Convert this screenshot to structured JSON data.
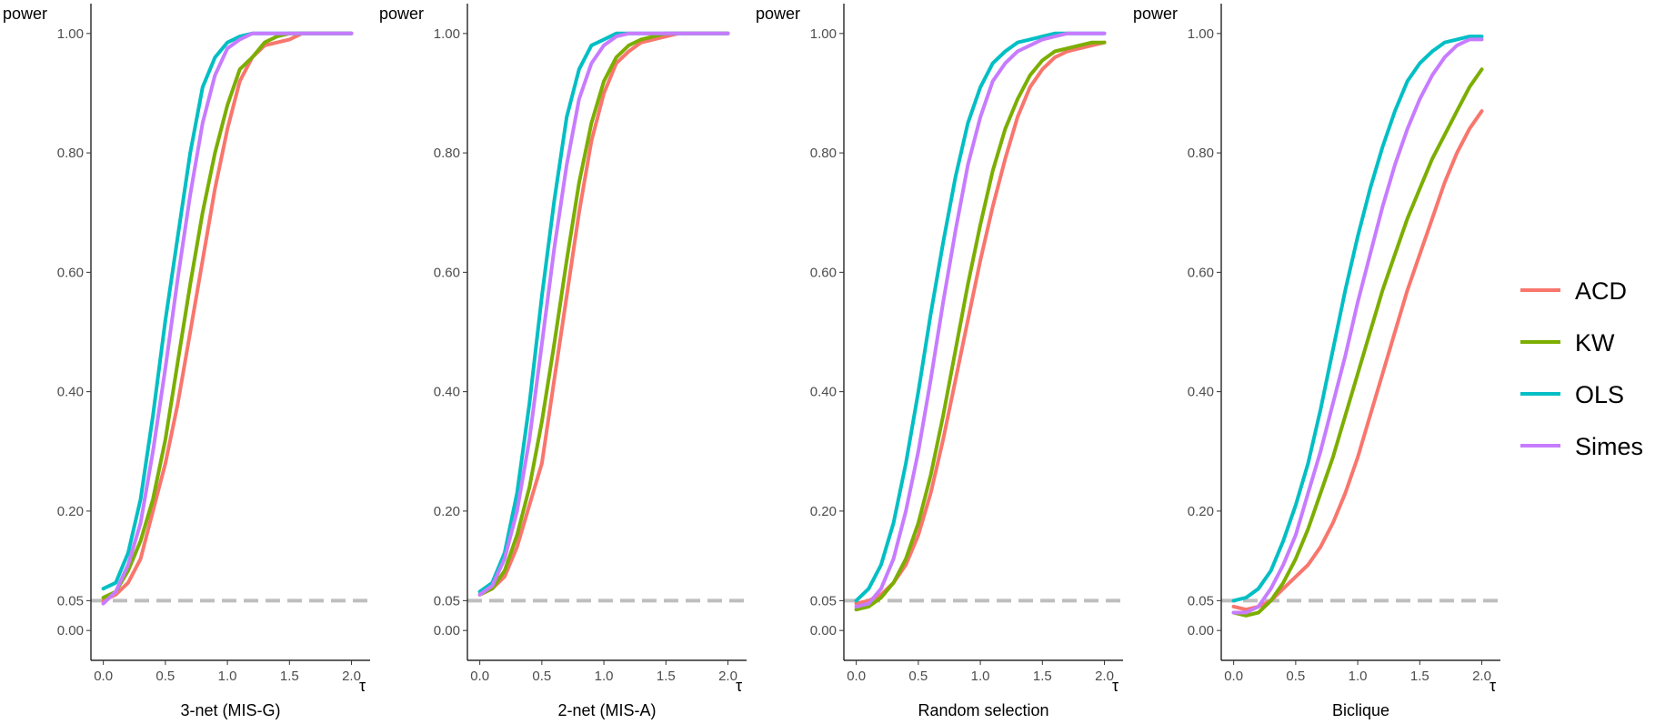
{
  "chart_data": {
    "type": "line",
    "y_label": "power",
    "x_label": "τ",
    "xlim": [
      -0.1,
      2.15
    ],
    "ylim": [
      -0.05,
      1.05
    ],
    "x_ticks": [
      0.0,
      0.5,
      1.0,
      1.5,
      2.0
    ],
    "x_tick_labels": [
      "0.0",
      "0.5",
      "1.0",
      "1.5",
      "2.0"
    ],
    "y_ticks": [
      0.0,
      0.05,
      0.2,
      0.4,
      0.6,
      0.8,
      1.0
    ],
    "y_tick_labels": [
      "0.00",
      "0.05",
      "0.20",
      "0.40",
      "0.60",
      "0.80",
      "1.00"
    ],
    "reference_line": {
      "y": 0.05,
      "style": "dashed",
      "color": "#bebebe"
    },
    "legend": {
      "position": "right",
      "entries": [
        {
          "name": "ACD",
          "color": "#F8766D"
        },
        {
          "name": "KW",
          "color": "#7CAE00"
        },
        {
          "name": "OLS",
          "color": "#00BFC4"
        },
        {
          "name": "Simes",
          "color": "#C77CFF"
        }
      ]
    },
    "x": [
      0.0,
      0.1,
      0.2,
      0.3,
      0.4,
      0.5,
      0.6,
      0.7,
      0.8,
      0.9,
      1.0,
      1.1,
      1.2,
      1.3,
      1.4,
      1.5,
      1.6,
      1.7,
      1.8,
      1.9,
      2.0
    ],
    "panels": [
      {
        "title": "3-net (MIS-G)",
        "series": [
          {
            "name": "ACD",
            "values": [
              0.05,
              0.06,
              0.08,
              0.12,
              0.2,
              0.28,
              0.38,
              0.5,
              0.62,
              0.74,
              0.84,
              0.92,
              0.96,
              0.98,
              0.985,
              0.99,
              1.0,
              1.0,
              1.0,
              1.0,
              1.0
            ]
          },
          {
            "name": "KW",
            "values": [
              0.055,
              0.065,
              0.1,
              0.15,
              0.22,
              0.32,
              0.45,
              0.58,
              0.7,
              0.8,
              0.88,
              0.94,
              0.96,
              0.985,
              0.995,
              1.0,
              1.0,
              1.0,
              1.0,
              1.0,
              1.0
            ]
          },
          {
            "name": "OLS",
            "values": [
              0.07,
              0.08,
              0.13,
              0.22,
              0.36,
              0.52,
              0.66,
              0.8,
              0.91,
              0.96,
              0.985,
              0.995,
              1.0,
              1.0,
              1.0,
              1.0,
              1.0,
              1.0,
              1.0,
              1.0,
              1.0
            ]
          },
          {
            "name": "Simes",
            "values": [
              0.045,
              0.065,
              0.11,
              0.18,
              0.3,
              0.44,
              0.59,
              0.73,
              0.85,
              0.93,
              0.975,
              0.99,
              1.0,
              1.0,
              1.0,
              1.0,
              1.0,
              1.0,
              1.0,
              1.0,
              1.0
            ]
          }
        ]
      },
      {
        "title": "2-net (MIS-A)",
        "series": [
          {
            "name": "ACD",
            "values": [
              0.06,
              0.07,
              0.09,
              0.14,
              0.21,
              0.28,
              0.42,
              0.56,
              0.7,
              0.82,
              0.9,
              0.95,
              0.97,
              0.985,
              0.99,
              0.995,
              1.0,
              1.0,
              1.0,
              1.0,
              1.0
            ]
          },
          {
            "name": "KW",
            "values": [
              0.06,
              0.07,
              0.1,
              0.16,
              0.24,
              0.35,
              0.48,
              0.62,
              0.75,
              0.85,
              0.92,
              0.96,
              0.98,
              0.99,
              0.995,
              1.0,
              1.0,
              1.0,
              1.0,
              1.0,
              1.0
            ]
          },
          {
            "name": "OLS",
            "values": [
              0.065,
              0.08,
              0.13,
              0.23,
              0.38,
              0.56,
              0.72,
              0.86,
              0.94,
              0.98,
              0.99,
              1.0,
              1.0,
              1.0,
              1.0,
              1.0,
              1.0,
              1.0,
              1.0,
              1.0,
              1.0
            ]
          },
          {
            "name": "Simes",
            "values": [
              0.06,
              0.075,
              0.12,
              0.2,
              0.32,
              0.48,
              0.64,
              0.78,
              0.89,
              0.95,
              0.98,
              0.995,
              1.0,
              1.0,
              1.0,
              1.0,
              1.0,
              1.0,
              1.0,
              1.0,
              1.0
            ]
          }
        ]
      },
      {
        "title": "Random selection",
        "series": [
          {
            "name": "ACD",
            "values": [
              0.045,
              0.05,
              0.06,
              0.08,
              0.11,
              0.16,
              0.23,
              0.32,
              0.42,
              0.52,
              0.62,
              0.71,
              0.79,
              0.86,
              0.91,
              0.94,
              0.96,
              0.97,
              0.975,
              0.98,
              0.985
            ]
          },
          {
            "name": "KW",
            "values": [
              0.035,
              0.04,
              0.055,
              0.08,
              0.12,
              0.18,
              0.26,
              0.36,
              0.47,
              0.58,
              0.68,
              0.77,
              0.84,
              0.89,
              0.93,
              0.955,
              0.97,
              0.975,
              0.98,
              0.985,
              0.985
            ]
          },
          {
            "name": "OLS",
            "values": [
              0.05,
              0.07,
              0.11,
              0.18,
              0.28,
              0.4,
              0.53,
              0.65,
              0.76,
              0.85,
              0.91,
              0.95,
              0.97,
              0.985,
              0.99,
              0.995,
              1.0,
              1.0,
              1.0,
              1.0,
              1.0
            ]
          },
          {
            "name": "Simes",
            "values": [
              0.04,
              0.045,
              0.07,
              0.12,
              0.2,
              0.3,
              0.42,
              0.55,
              0.67,
              0.78,
              0.86,
              0.92,
              0.95,
              0.97,
              0.98,
              0.99,
              0.995,
              1.0,
              1.0,
              1.0,
              1.0
            ]
          }
        ]
      },
      {
        "title": "Biclique",
        "series": [
          {
            "name": "ACD",
            "values": [
              0.04,
              0.035,
              0.04,
              0.05,
              0.07,
              0.09,
              0.11,
              0.14,
              0.18,
              0.23,
              0.29,
              0.36,
              0.43,
              0.5,
              0.57,
              0.63,
              0.69,
              0.75,
              0.8,
              0.84,
              0.87
            ]
          },
          {
            "name": "KW",
            "values": [
              0.03,
              0.025,
              0.03,
              0.05,
              0.08,
              0.12,
              0.17,
              0.23,
              0.29,
              0.36,
              0.43,
              0.5,
              0.57,
              0.63,
              0.69,
              0.74,
              0.79,
              0.83,
              0.87,
              0.91,
              0.94
            ]
          },
          {
            "name": "OLS",
            "values": [
              0.05,
              0.055,
              0.07,
              0.1,
              0.15,
              0.21,
              0.28,
              0.37,
              0.47,
              0.57,
              0.66,
              0.74,
              0.81,
              0.87,
              0.92,
              0.95,
              0.97,
              0.985,
              0.99,
              0.995,
              0.995
            ]
          },
          {
            "name": "Simes",
            "values": [
              0.03,
              0.03,
              0.04,
              0.07,
              0.11,
              0.16,
              0.23,
              0.3,
              0.38,
              0.46,
              0.55,
              0.63,
              0.71,
              0.78,
              0.84,
              0.89,
              0.93,
              0.96,
              0.98,
              0.99,
              0.99
            ]
          }
        ]
      }
    ]
  }
}
